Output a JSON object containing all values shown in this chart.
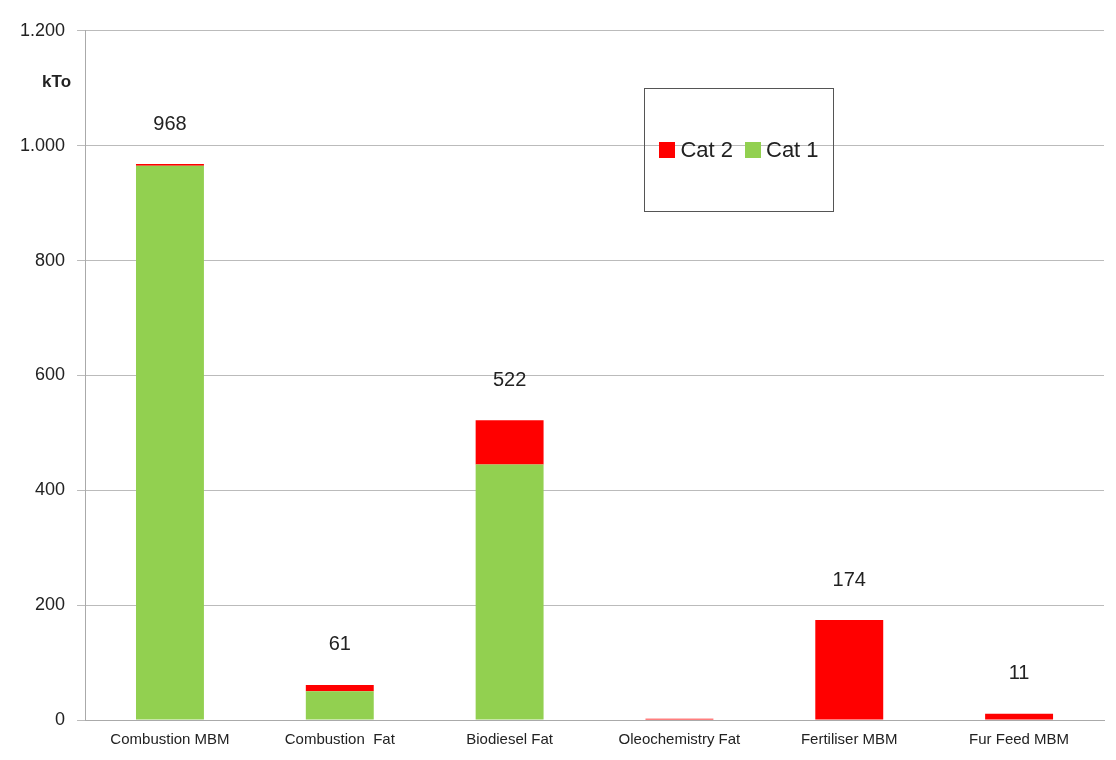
{
  "chart_data": {
    "type": "bar",
    "stacked": true,
    "ylabel": "kTo",
    "categories": [
      "Combustion MBM",
      "Combustion  Fat",
      "Biodiesel Fat",
      "Oleochemistry Fat",
      "Fertiliser MBM",
      "Fur Feed MBM"
    ],
    "series": [
      {
        "name": "Cat 1",
        "color": "#92d050",
        "values": [
          965,
          50,
          445,
          null,
          0,
          0
        ]
      },
      {
        "name": "Cat 2",
        "color": "#ff0000",
        "values": [
          3,
          11,
          77,
          2,
          174,
          11
        ]
      }
    ],
    "totals": [
      "968",
      "61",
      "522",
      null,
      "174",
      "11"
    ],
    "ylim": [
      0,
      1200
    ],
    "yticks": [
      0,
      200,
      400,
      600,
      800,
      {
        "value": 1000,
        "label": "1.000"
      },
      {
        "value": 1200,
        "label": "1.200"
      }
    ],
    "grid": "y",
    "legend": "top"
  }
}
